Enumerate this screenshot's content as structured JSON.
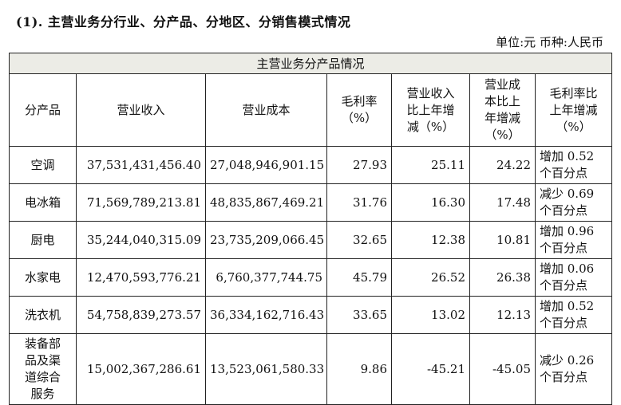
{
  "heading": "(1).   主营业务分行业、分产品、分地区、分销售模式情况",
  "unit": "单位:元   币种:人民币",
  "table": {
    "caption": "主营业务分产品情况",
    "headers": [
      "分产品",
      "营业收入",
      "营业成本",
      "毛利率\n（%）",
      "营业收入\n比上年增\n减（%）",
      "营业成\n本比上\n年增减\n（%）",
      "毛利率比\n上年增减\n（%）"
    ],
    "rows": [
      {
        "name": "空调",
        "revenue": "37,531,431,456.40",
        "cost": "27,048,946,901.15",
        "margin": "27.93",
        "rev_chg": "25.11",
        "cost_chg": "24.22",
        "margin_chg": "增加 0.52\n个百分点"
      },
      {
        "name": "电冰箱",
        "revenue": "71,569,789,213.81",
        "cost": "48,835,867,469.21",
        "margin": "31.76",
        "rev_chg": "16.30",
        "cost_chg": "17.48",
        "margin_chg": "减少 0.69\n个百分点"
      },
      {
        "name": "厨电",
        "revenue": "35,244,040,315.09",
        "cost": "23,735,209,066.45",
        "margin": "32.65",
        "rev_chg": "12.38",
        "cost_chg": "10.81",
        "margin_chg": "增加 0.96\n个百分点"
      },
      {
        "name": "水家电",
        "revenue": "12,470,593,776.21",
        "cost": "6,760,377,744.75",
        "margin": "45.79",
        "rev_chg": "26.52",
        "cost_chg": "26.38",
        "margin_chg": "增加 0.06\n个百分点"
      },
      {
        "name": "洗衣机",
        "revenue": "54,758,839,273.57",
        "cost": "36,334,162,716.43",
        "margin": "33.65",
        "rev_chg": "13.02",
        "cost_chg": "12.13",
        "margin_chg": "增加 0.52\n个百分点"
      },
      {
        "name": "装备部\n品及渠\n道综合\n服务",
        "revenue": "15,002,367,286.61",
        "cost": "13,523,061,580.33",
        "margin": "9.86",
        "rev_chg": "-45.21",
        "cost_chg": "-45.05",
        "margin_chg": "减少 0.26\n个百分点"
      }
    ]
  }
}
